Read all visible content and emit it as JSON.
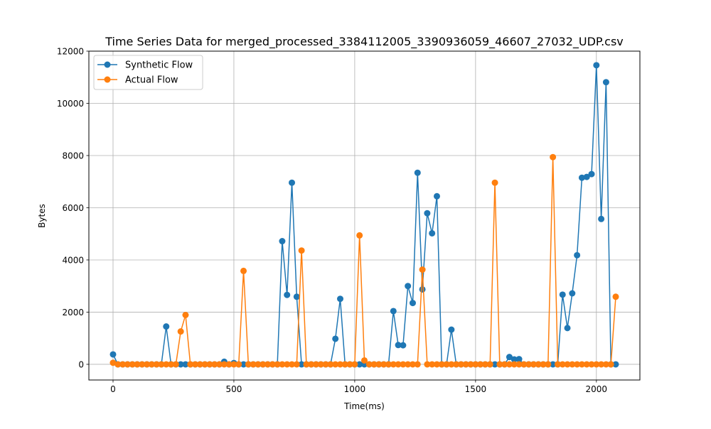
{
  "chart_data": {
    "type": "line",
    "title": "Time Series Data for merged_processed_3384112005_3390936059_46607_27032_UDP.csv",
    "xlabel": "Time(ms)",
    "ylabel": "Bytes",
    "xlim": [
      -100,
      2180
    ],
    "ylim": [
      -600,
      12000
    ],
    "xticks": [
      0,
      500,
      1000,
      1500,
      2000
    ],
    "yticks": [
      0,
      2000,
      4000,
      6000,
      8000,
      10000,
      12000
    ],
    "grid": true,
    "legend_position": "top-left",
    "x": [
      0,
      20,
      40,
      60,
      80,
      100,
      120,
      140,
      160,
      180,
      200,
      220,
      240,
      260,
      280,
      300,
      320,
      340,
      360,
      380,
      400,
      420,
      440,
      460,
      480,
      500,
      520,
      540,
      560,
      580,
      600,
      620,
      640,
      660,
      680,
      700,
      720,
      740,
      760,
      780,
      800,
      820,
      840,
      860,
      880,
      900,
      920,
      940,
      960,
      980,
      1000,
      1020,
      1040,
      1060,
      1080,
      1100,
      1120,
      1140,
      1160,
      1180,
      1200,
      1220,
      1240,
      1260,
      1280,
      1300,
      1320,
      1340,
      1360,
      1380,
      1400,
      1420,
      1440,
      1460,
      1480,
      1500,
      1520,
      1540,
      1560,
      1580,
      1600,
      1620,
      1640,
      1660,
      1680,
      1700,
      1720,
      1740,
      1760,
      1780,
      1800,
      1820,
      1840,
      1860,
      1880,
      1900,
      1920,
      1940,
      1960,
      1980,
      2000,
      2020,
      2040,
      2060,
      2080
    ],
    "series": [
      {
        "name": "Synthetic Flow",
        "color": "#1f77b4",
        "values": [
          380,
          0,
          0,
          0,
          0,
          0,
          0,
          0,
          0,
          0,
          0,
          1450,
          0,
          0,
          0,
          0,
          0,
          0,
          0,
          0,
          0,
          0,
          0,
          100,
          0,
          50,
          0,
          0,
          0,
          0,
          0,
          0,
          0,
          0,
          0,
          4720,
          2660,
          6960,
          2590,
          0,
          0,
          0,
          0,
          0,
          0,
          0,
          980,
          2510,
          0,
          0,
          0,
          0,
          0,
          0,
          0,
          0,
          0,
          0,
          2040,
          740,
          730,
          3000,
          2350,
          7340,
          2870,
          5790,
          5020,
          6440,
          0,
          0,
          1330,
          0,
          0,
          0,
          0,
          0,
          0,
          0,
          0,
          0,
          0,
          0,
          280,
          190,
          200,
          0,
          0,
          0,
          0,
          0,
          0,
          0,
          0,
          2670,
          1390,
          2720,
          4180,
          7150,
          7180,
          7290,
          11460,
          5570,
          10810,
          0,
          0
        ]
      },
      {
        "name": "Actual Flow",
        "color": "#ff7f0e",
        "values": [
          60,
          0,
          0,
          0,
          0,
          0,
          0,
          0,
          0,
          0,
          0,
          0,
          0,
          0,
          1260,
          1890,
          0,
          0,
          0,
          0,
          0,
          0,
          0,
          0,
          0,
          0,
          0,
          3580,
          0,
          0,
          0,
          0,
          0,
          0,
          0,
          0,
          0,
          0,
          0,
          4360,
          0,
          0,
          0,
          0,
          0,
          0,
          0,
          0,
          0,
          0,
          0,
          4940,
          150,
          0,
          0,
          0,
          0,
          0,
          0,
          0,
          0,
          0,
          0,
          0,
          3630,
          0,
          0,
          0,
          0,
          0,
          0,
          0,
          0,
          0,
          0,
          0,
          0,
          0,
          0,
          6960,
          0,
          0,
          0,
          0,
          0,
          0,
          0,
          0,
          0,
          0,
          0,
          7940,
          0,
          0,
          0,
          0,
          0,
          0,
          0,
          0,
          0,
          0,
          0,
          0,
          2590
        ]
      }
    ]
  }
}
